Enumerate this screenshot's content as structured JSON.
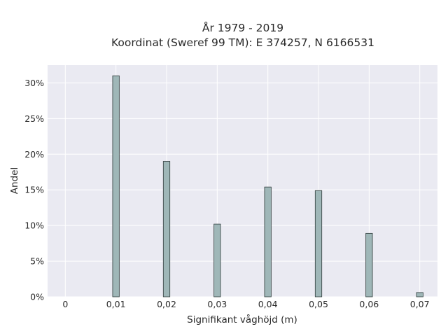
{
  "chart_data": {
    "type": "bar",
    "title": "År 1979 - 2019",
    "subtitle": "Koordinat (Sweref 99 TM): E 374257, N 6166531",
    "xlabel": "Signifikant våghöjd (m)",
    "ylabel": "Andel",
    "x": [
      0.01,
      0.02,
      0.03,
      0.04,
      0.05,
      0.06,
      0.07
    ],
    "values": [
      31.0,
      19.0,
      10.2,
      15.4,
      14.9,
      8.9,
      0.6
    ],
    "value_unit": "%",
    "xlim": [
      -0.0035,
      0.0735
    ],
    "ylim": [
      0,
      32.5
    ],
    "xticks": [
      0,
      0.01,
      0.02,
      0.03,
      0.04,
      0.05,
      0.06,
      0.07
    ],
    "xtick_labels": [
      "0",
      "0,01",
      "0,02",
      "0,03",
      "0,04",
      "0,05",
      "0,06",
      "0,07"
    ],
    "yticks": [
      0,
      5,
      10,
      15,
      20,
      25,
      30
    ],
    "ytick_labels": [
      "0%",
      "5%",
      "10%",
      "15%",
      "20%",
      "25%",
      "30%"
    ],
    "grid": true,
    "bar_color": "#9fb7b8",
    "bar_edge_color": "#2f3b3b",
    "plot_background": "#eaeaf2",
    "grid_color": "#ffffff"
  }
}
